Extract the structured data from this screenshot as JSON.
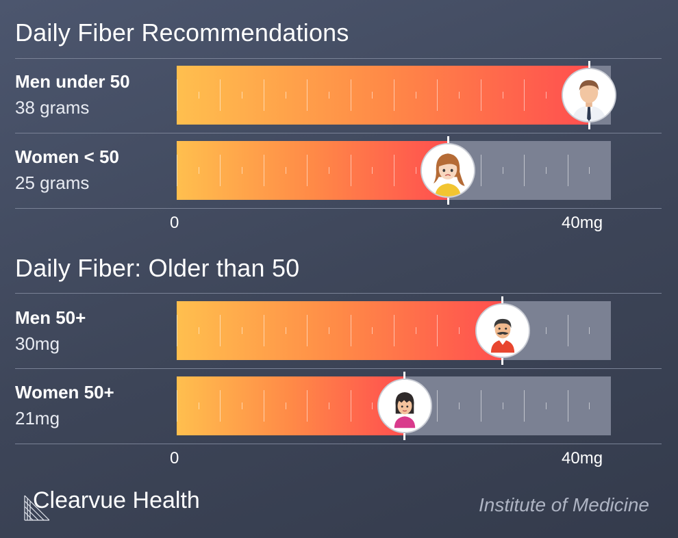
{
  "brand": {
    "name": "Clearvue Health",
    "logo_icon": "striped-triangle-logo"
  },
  "source": "Institute of Medicine",
  "colors": {
    "bar_start": "#ffbf4e",
    "bar_end": "#ff4f4f",
    "track": "#7b8193"
  },
  "chart_data": [
    {
      "type": "bar",
      "orientation": "horizontal",
      "title": "Daily Fiber Recommendations",
      "xlim": [
        0,
        40
      ],
      "axis_labels": [
        "0",
        "40mg"
      ],
      "categories": [
        "Men under 50",
        "Women < 50"
      ],
      "value_labels": [
        "38 grams",
        "25 grams"
      ],
      "values": [
        38,
        25
      ],
      "icons": [
        "businessman-avatar-icon",
        "young-woman-avatar-icon"
      ]
    },
    {
      "type": "bar",
      "orientation": "horizontal",
      "title": "Daily Fiber: Older than 50",
      "xlim": [
        0,
        40
      ],
      "axis_labels": [
        "0",
        "40mg"
      ],
      "categories": [
        "Men 50+",
        "Women 50+"
      ],
      "value_labels": [
        "30mg",
        "21mg"
      ],
      "values": [
        30,
        21
      ],
      "icons": [
        "mustache-man-avatar-icon",
        "woman-bangs-avatar-icon"
      ]
    }
  ]
}
